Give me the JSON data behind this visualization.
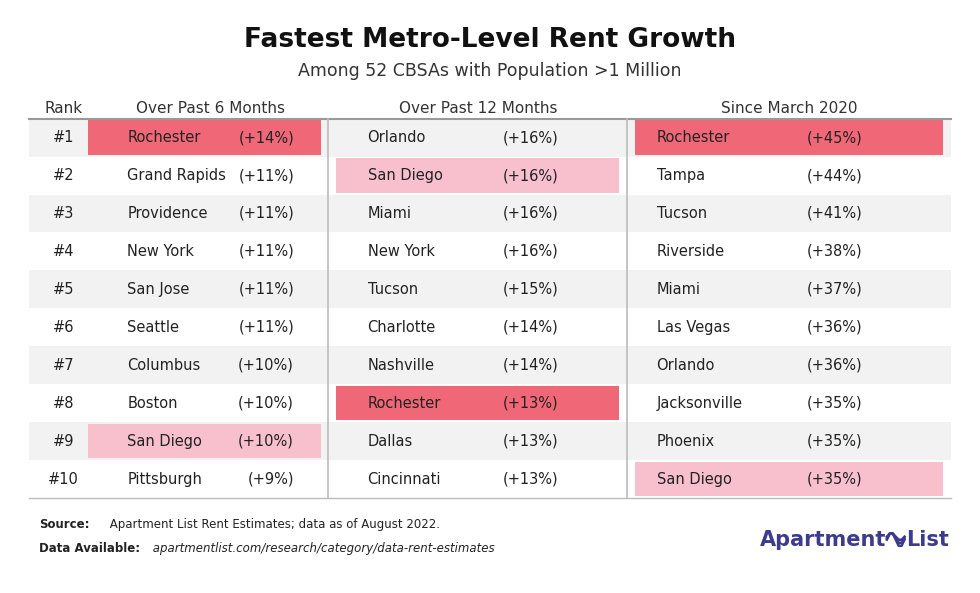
{
  "title": "Fastest Metro-Level Rent Growth",
  "subtitle": "Among 52 CBSAs with Population >1 Million",
  "ranks": [
    "#1",
    "#2",
    "#3",
    "#4",
    "#5",
    "#6",
    "#7",
    "#8",
    "#9",
    "#10"
  ],
  "col1_cities": [
    "Rochester",
    "Grand Rapids",
    "Providence",
    "New York",
    "San Jose",
    "Seattle",
    "Columbus",
    "Boston",
    "San Diego",
    "Pittsburgh"
  ],
  "col1_values": [
    "(+14%)",
    "(+11%)",
    "(+11%)",
    "(+11%)",
    "(+11%)",
    "(+11%)",
    "(+10%)",
    "(+10%)",
    "(+10%)",
    "(+9%)"
  ],
  "col1_highlights": [
    true,
    false,
    false,
    false,
    false,
    false,
    false,
    false,
    true,
    false
  ],
  "col1_highlight_strong": [
    true,
    false,
    false,
    false,
    false,
    false,
    false,
    false,
    false,
    false
  ],
  "col2_cities": [
    "Orlando",
    "San Diego",
    "Miami",
    "New York",
    "Tucson",
    "Charlotte",
    "Nashville",
    "Rochester",
    "Dallas",
    "Cincinnati"
  ],
  "col2_values": [
    "(+16%)",
    "(+16%)",
    "(+16%)",
    "(+16%)",
    "(+15%)",
    "(+14%)",
    "(+14%)",
    "(+13%)",
    "(+13%)",
    "(+13%)"
  ],
  "col2_highlights": [
    false,
    true,
    false,
    false,
    false,
    false,
    false,
    true,
    false,
    false
  ],
  "col2_highlight_strong": [
    false,
    false,
    false,
    false,
    false,
    false,
    false,
    true,
    false,
    false
  ],
  "col3_cities": [
    "Rochester",
    "Tampa",
    "Tucson",
    "Riverside",
    "Miami",
    "Las Vegas",
    "Orlando",
    "Jacksonville",
    "Phoenix",
    "San Diego"
  ],
  "col3_values": [
    "(+45%)",
    "(+44%)",
    "(+41%)",
    "(+38%)",
    "(+37%)",
    "(+36%)",
    "(+36%)",
    "(+35%)",
    "(+35%)",
    "(+35%)"
  ],
  "col3_highlights": [
    true,
    false,
    false,
    false,
    false,
    false,
    false,
    false,
    false,
    true
  ],
  "col3_highlight_strong": [
    true,
    false,
    false,
    false,
    false,
    false,
    false,
    false,
    false,
    false
  ],
  "highlight_strong_color": "#f06878",
  "highlight_soft_color": "#f8c0cc",
  "bg_color": "#ffffff",
  "row_even_color": "#f2f2f2",
  "row_odd_color": "#ffffff",
  "header_text_color": "#333333",
  "cell_text_color": "#222222",
  "logo_color": "#3d3b8e",
  "source_bold": "Source:",
  "source_rest": " Apartment List Rent Estimates; data as of August 2022.",
  "data_bold": "Data Available:",
  "data_rest": " apartmentlist.com/research/category/data-rent-estimates"
}
